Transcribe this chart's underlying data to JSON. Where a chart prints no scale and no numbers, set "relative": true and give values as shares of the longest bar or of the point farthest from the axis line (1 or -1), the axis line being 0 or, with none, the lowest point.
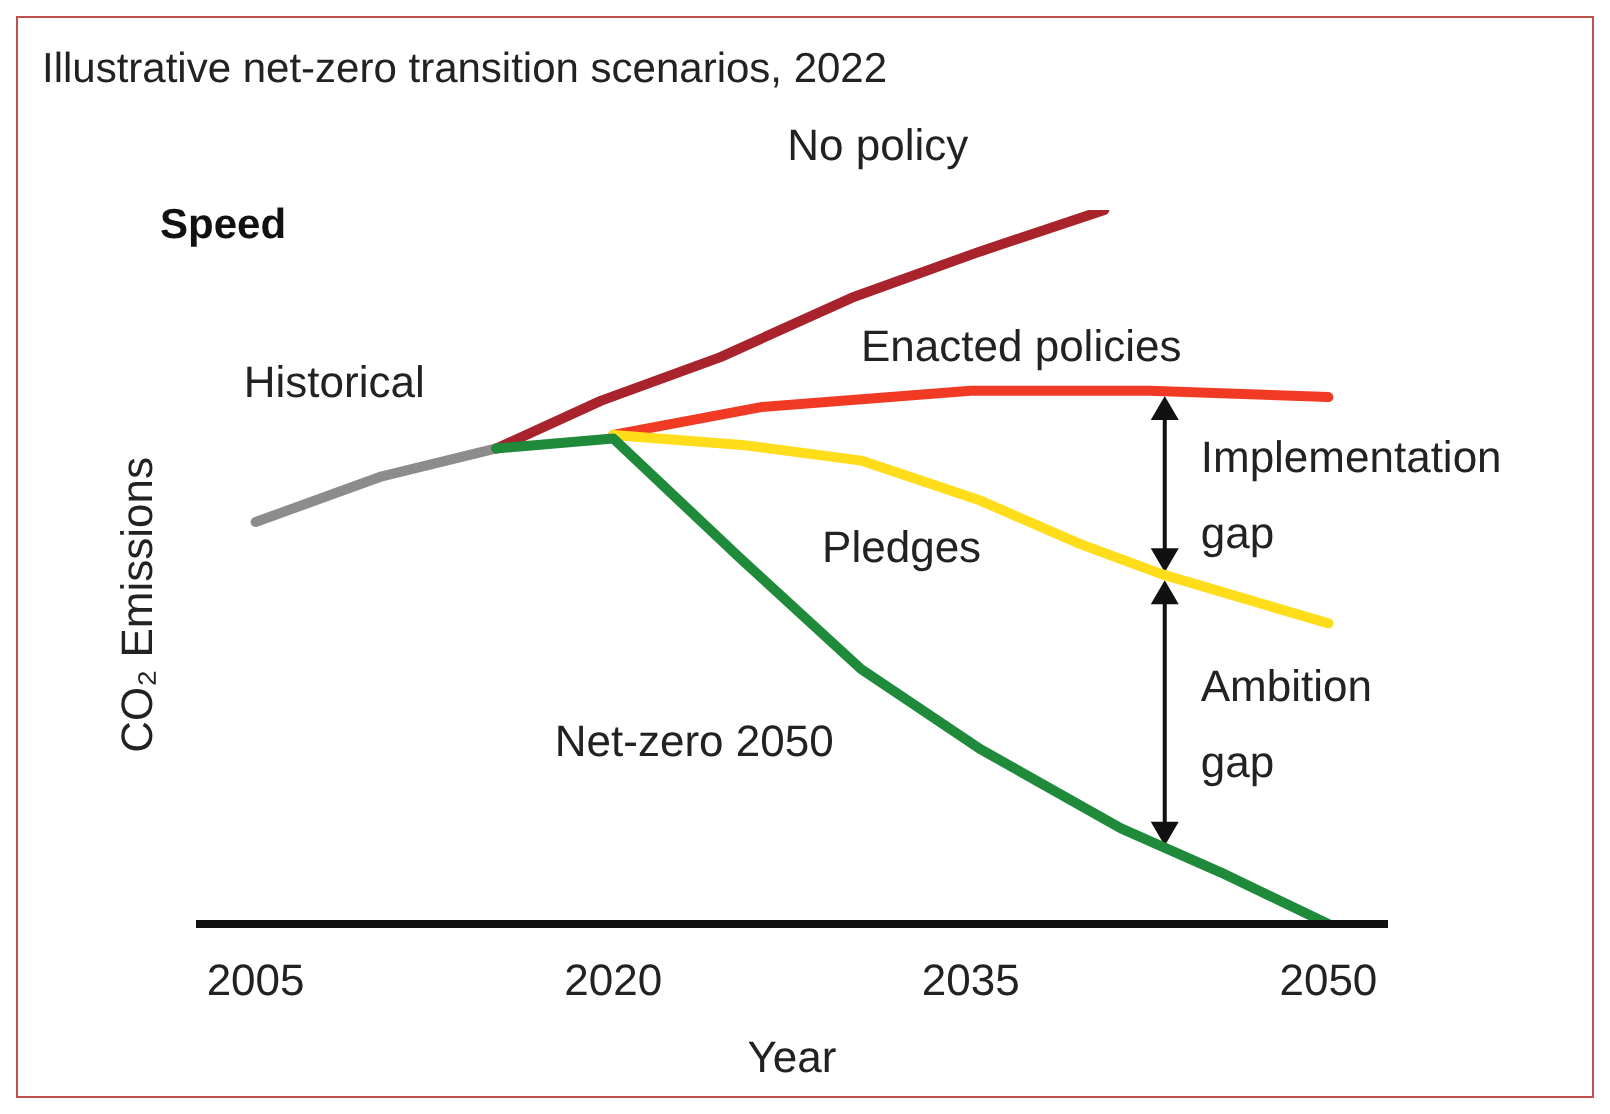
{
  "chart_data": {
    "type": "line",
    "title": "Illustrative net-zero transition scenarios, 2022",
    "subtitle": "Speed",
    "xlabel": "Year",
    "ylabel": "CO₂ Emissions",
    "relative": true,
    "xlim": [
      2002.5,
      2052.5
    ],
    "xticks": [
      2005,
      2020,
      2035,
      2050
    ],
    "marker": "none",
    "line_style": "solid",
    "series": [
      {
        "name": "Historical",
        "color": "#8c8c8c",
        "x": [
          2005,
          2010.3,
          2015.1
        ],
        "values": [
          0.563,
          0.627,
          0.666
        ]
      },
      {
        "name": "No policy",
        "color": "#a8232c",
        "x": [
          2015.1,
          2019.5,
          2024.5,
          2030,
          2035.4,
          2040.6
        ],
        "values": [
          0.666,
          0.733,
          0.794,
          0.877,
          0.942,
          1
        ]
      },
      {
        "name": "Enacted policies",
        "color": "#f03a24",
        "x": [
          2020,
          2026.2,
          2035,
          2042.5,
          2050
        ],
        "values": [
          0.685,
          0.724,
          0.747,
          0.747,
          0.738
        ]
      },
      {
        "name": "Pledges",
        "color": "#ffdd1a",
        "x": [
          2020,
          2025.4,
          2030.4,
          2035.4,
          2039.6,
          2043,
          2050
        ],
        "values": [
          0.685,
          0.671,
          0.649,
          0.593,
          0.532,
          0.49,
          0.421
        ]
      },
      {
        "name": "Net-zero 2050",
        "color": "#1e8a3a",
        "x": [
          2015.1,
          2020,
          2025.4,
          2030.4,
          2035.4,
          2041.3,
          2045.5,
          2050
        ],
        "values": [
          0.666,
          0.68,
          0.51,
          0.357,
          0.245,
          0.134,
          0.072,
          0
        ]
      }
    ],
    "annotations": [
      "Implementation gap",
      "Ambition gap"
    ]
  }
}
